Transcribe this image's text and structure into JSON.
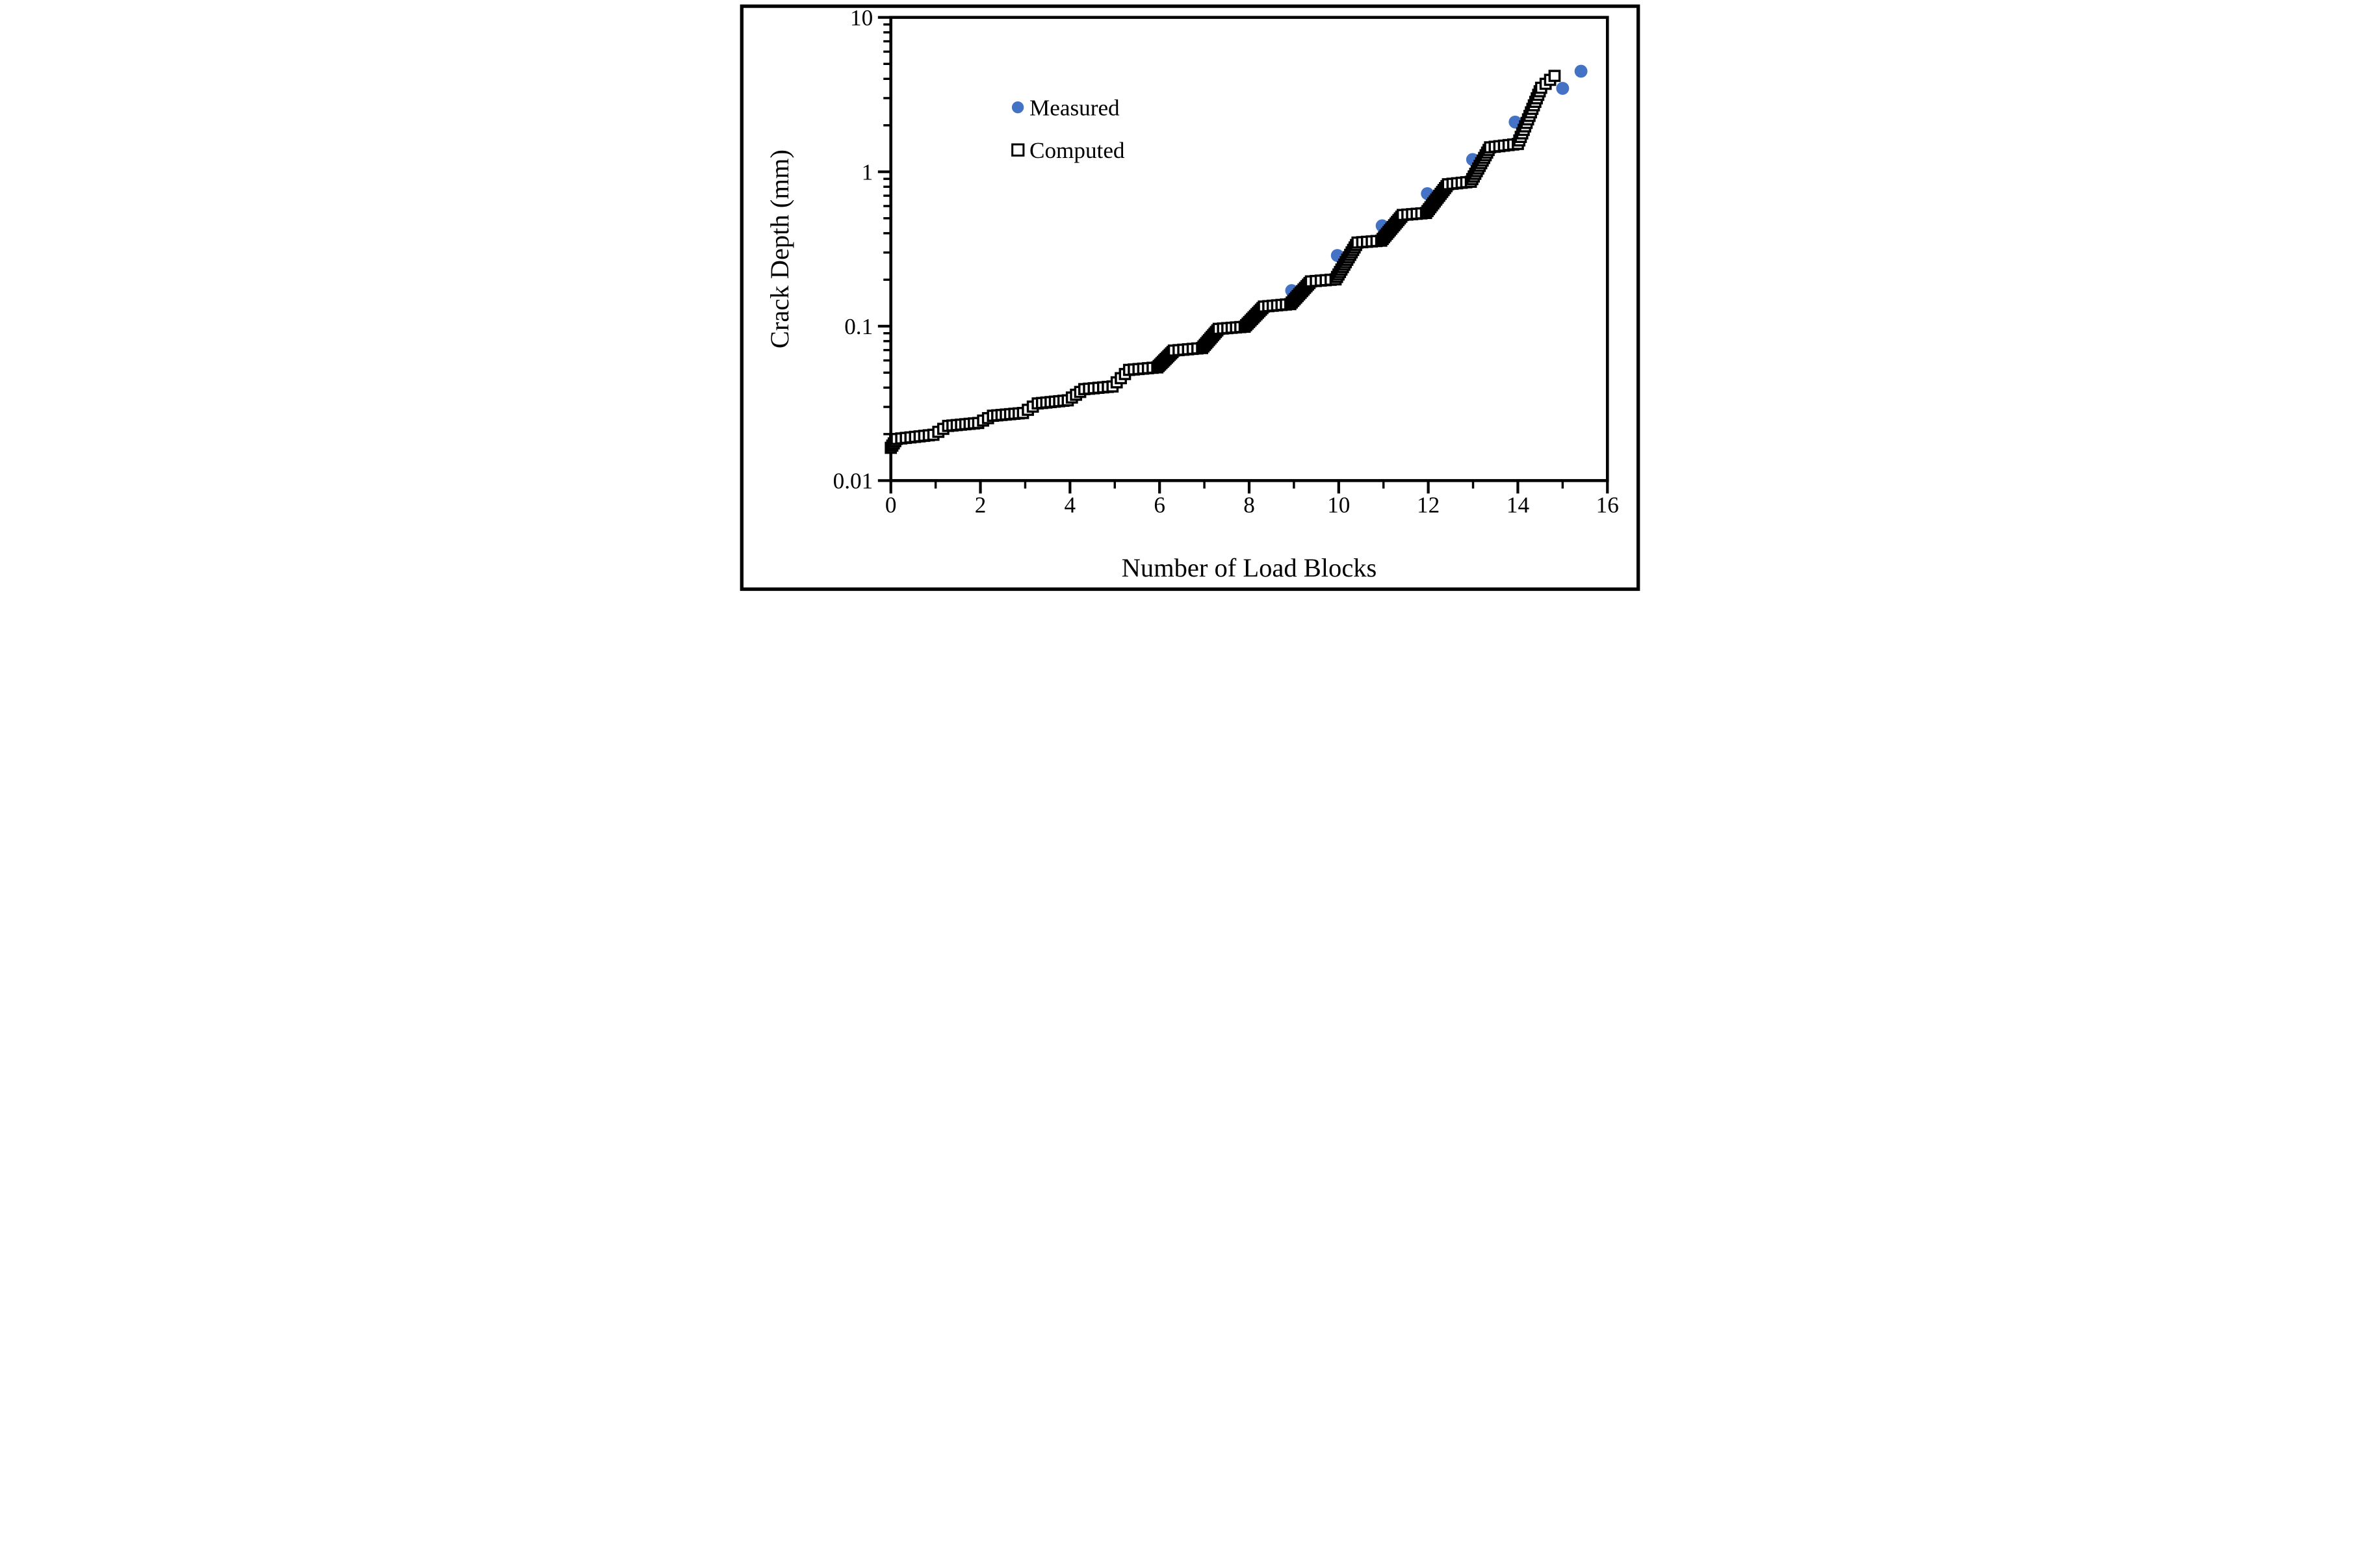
{
  "figure": {
    "background": "#ffffff",
    "border_color": "#000000",
    "accent_blue": "#4472C4",
    "series_black": "#000000"
  },
  "legend": {
    "items": [
      {
        "label": "Measured",
        "marker": "filled-circle",
        "color": "#4472C4"
      },
      {
        "label": "Computed",
        "marker": "open-square",
        "color": "#000000"
      }
    ]
  },
  "chart_data": {
    "type": "scatter",
    "title": "",
    "xlabel": "Number of Load Blocks",
    "ylabel": "Crack Depth (mm)",
    "x_axis": {
      "min": 0,
      "max": 16,
      "scale": "linear",
      "major_ticks": [
        0,
        2,
        4,
        6,
        8,
        10,
        12,
        14,
        16
      ],
      "major_tick_labels": [
        "0",
        "2",
        "4",
        "6",
        "8",
        "10",
        "12",
        "14",
        "16"
      ],
      "minor_ticks": [
        1,
        3,
        5,
        7,
        9,
        11,
        13,
        15
      ]
    },
    "y_axis": {
      "min": 0.01,
      "max": 10,
      "scale": "log",
      "major_ticks": [
        {
          "value": 10,
          "label": "10"
        },
        {
          "value": 1,
          "label": "1"
        },
        {
          "value": 0.1,
          "label": "0.1"
        },
        {
          "value": 0.01,
          "label": "0.01"
        }
      ],
      "minor_ticks": [
        0.02,
        0.03,
        0.04,
        0.05,
        0.06,
        0.07,
        0.08,
        0.09,
        0.2,
        0.3,
        0.4,
        0.5,
        0.6,
        0.7,
        0.8,
        0.9,
        2,
        3,
        4,
        5,
        6,
        7,
        8,
        9
      ]
    },
    "series": [
      {
        "name": "Measured",
        "marker": "circle",
        "color": "#4472C4",
        "points": [
          [
            7.0,
            0.076
          ],
          [
            8.0,
            0.108
          ],
          [
            8.95,
            0.17
          ],
          [
            9.97,
            0.287
          ],
          [
            10.97,
            0.447
          ],
          [
            11.98,
            0.722
          ],
          [
            12.99,
            1.2
          ],
          [
            13.94,
            2.1
          ],
          [
            15.0,
            3.47
          ],
          [
            15.41,
            4.48
          ]
        ]
      },
      {
        "name": "Computed",
        "marker": "open-square",
        "color": "#000000",
        "description": "Dense staircase of open squares: near-flat growth within each load block, steep rise at block transitions.",
        "spine": [
          [
            0.0,
            0.0163
          ],
          [
            0.13,
            0.0186
          ],
          [
            0.95,
            0.0198
          ],
          [
            1.28,
            0.0226
          ],
          [
            1.95,
            0.0236
          ],
          [
            2.28,
            0.0263
          ],
          [
            2.95,
            0.0274
          ],
          [
            3.28,
            0.0316
          ],
          [
            3.95,
            0.0331
          ],
          [
            4.32,
            0.0391
          ],
          [
            4.95,
            0.0407
          ],
          [
            5.32,
            0.0521
          ],
          [
            5.95,
            0.0541
          ],
          [
            6.32,
            0.0695
          ],
          [
            6.95,
            0.0722
          ],
          [
            7.32,
            0.0961
          ],
          [
            7.9,
            0.0992
          ],
          [
            8.33,
            0.134
          ],
          [
            8.92,
            0.139
          ],
          [
            9.38,
            0.195
          ],
          [
            9.93,
            0.201
          ],
          [
            10.42,
            0.348
          ],
          [
            10.95,
            0.358
          ],
          [
            11.43,
            0.525
          ],
          [
            11.95,
            0.541
          ],
          [
            12.44,
            0.83
          ],
          [
            12.95,
            0.862
          ],
          [
            13.38,
            1.44
          ],
          [
            14.0,
            1.515
          ],
          [
            14.52,
            3.5
          ],
          [
            14.82,
            4.18
          ]
        ]
      }
    ],
    "layout": {
      "grid": false,
      "legend_position": "inside-top-left"
    }
  }
}
